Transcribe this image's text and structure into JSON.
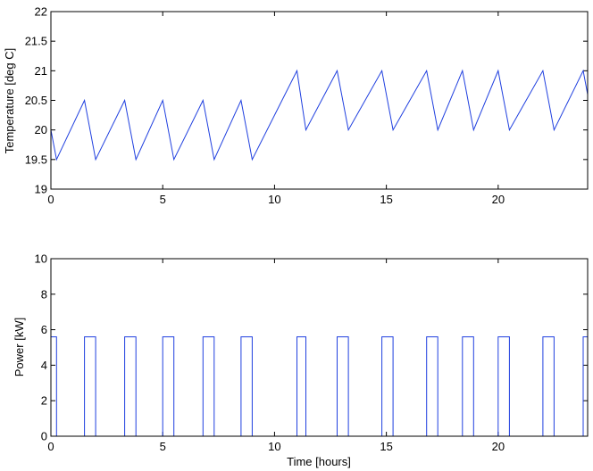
{
  "chart_data": [
    {
      "type": "line",
      "title": "",
      "xlabel": "",
      "ylabel": "Temperature [deg C]",
      "xlim": [
        0,
        24
      ],
      "ylim": [
        19,
        22
      ],
      "xticks": [
        "0",
        "5",
        "10",
        "15",
        "20"
      ],
      "yticks": [
        "19",
        "19.5",
        "20",
        "20.5",
        "21",
        "21.5",
        "22"
      ],
      "xtick_values": [
        0,
        5,
        10,
        15,
        20
      ],
      "ytick_values": [
        19,
        19.5,
        20,
        20.5,
        21,
        21.5,
        22
      ],
      "grid": false,
      "color": "#1f3fdf",
      "series": [
        {
          "x": [
            0,
            0.25,
            1.5,
            2.0,
            3.3,
            3.8,
            5.0,
            5.5,
            6.8,
            7.3,
            8.5,
            9.0,
            11.0,
            11.4,
            12.8,
            13.3,
            14.8,
            15.3,
            16.8,
            17.3,
            18.4,
            18.9,
            20.0,
            20.5,
            22.0,
            22.5,
            23.8,
            24.0
          ],
          "y": [
            20.0,
            19.5,
            20.5,
            19.5,
            20.5,
            19.5,
            20.5,
            19.5,
            20.5,
            19.5,
            20.5,
            19.5,
            21.0,
            20.0,
            21.0,
            20.0,
            21.0,
            20.0,
            21.0,
            20.0,
            21.0,
            20.0,
            21.0,
            20.0,
            21.0,
            20.0,
            21.0,
            20.6
          ]
        }
      ]
    },
    {
      "type": "line",
      "title": "",
      "xlabel": "Time [hours]",
      "ylabel": "Power [kW]",
      "xlim": [
        0,
        24
      ],
      "ylim": [
        0,
        10
      ],
      "xticks": [
        "0",
        "5",
        "10",
        "15",
        "20"
      ],
      "yticks": [
        "0",
        "2",
        "4",
        "6",
        "8",
        "10"
      ],
      "xtick_values": [
        0,
        5,
        10,
        15,
        20
      ],
      "ytick_values": [
        0,
        2,
        4,
        6,
        8,
        10
      ],
      "grid": false,
      "color": "#1f3fdf",
      "on_value": 5.6,
      "on_intervals": [
        [
          0.0,
          0.25
        ],
        [
          1.5,
          2.0
        ],
        [
          3.3,
          3.8
        ],
        [
          5.0,
          5.5
        ],
        [
          6.8,
          7.3
        ],
        [
          8.5,
          9.0
        ],
        [
          11.0,
          11.4
        ],
        [
          12.8,
          13.3
        ],
        [
          14.8,
          15.3
        ],
        [
          16.8,
          17.3
        ],
        [
          18.4,
          18.9
        ],
        [
          20.0,
          20.5
        ],
        [
          22.0,
          22.5
        ],
        [
          23.8,
          24.0
        ]
      ]
    }
  ]
}
